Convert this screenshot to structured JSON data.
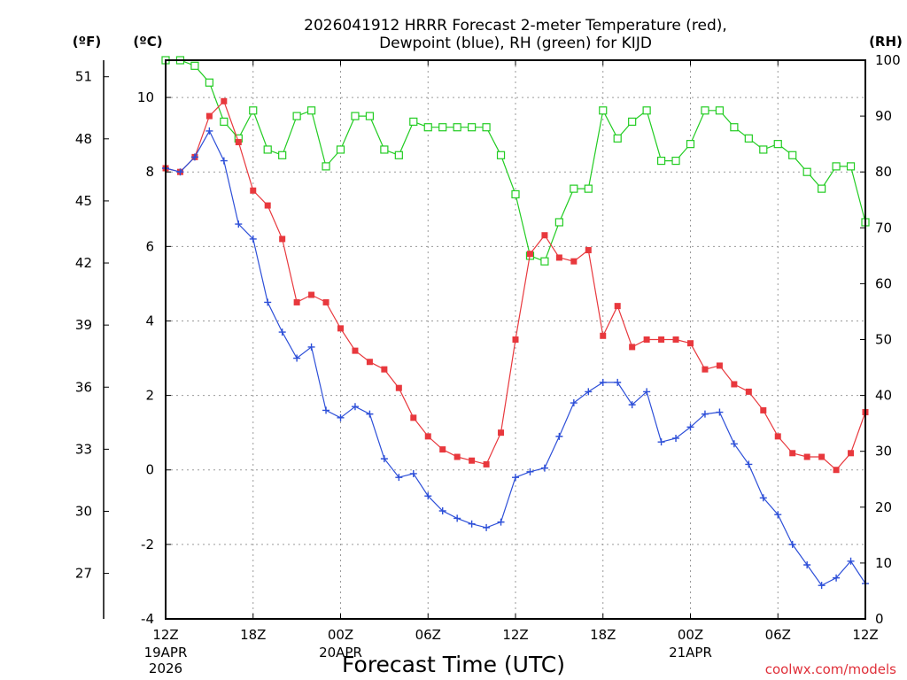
{
  "chart_data": {
    "type": "line",
    "title_line1": "2026041912 HRRR Forecast 2-meter Temperature (red),",
    "title_line2": "Dewpoint (blue), RH (green) for KIJD",
    "xlabel": "Forecast Time (UTC)",
    "credit": "coolwx.com/models",
    "unit_f": "(ºF)",
    "unit_c": "(ºC)",
    "unit_rh": "(RH)",
    "hours": [
      0,
      1,
      2,
      3,
      4,
      5,
      6,
      7,
      8,
      9,
      10,
      11,
      12,
      13,
      14,
      15,
      16,
      17,
      18,
      19,
      20,
      21,
      22,
      23,
      24,
      25,
      26,
      27,
      28,
      29,
      30,
      31,
      32,
      33,
      34,
      35,
      36,
      37,
      38,
      39,
      40,
      41,
      42,
      43,
      44,
      45,
      46,
      47,
      48
    ],
    "xlim": [
      0,
      48
    ],
    "ylim_c": [
      -4,
      11
    ],
    "ylim_rh": [
      0,
      100
    ],
    "x_ticks": [
      {
        "h": 0,
        "label": "12Z"
      },
      {
        "h": 6,
        "label": "18Z"
      },
      {
        "h": 12,
        "label": "00Z"
      },
      {
        "h": 18,
        "label": "06Z"
      },
      {
        "h": 24,
        "label": "12Z"
      },
      {
        "h": 30,
        "label": "18Z"
      },
      {
        "h": 36,
        "label": "00Z"
      },
      {
        "h": 42,
        "label": "06Z"
      },
      {
        "h": 48,
        "label": "12Z"
      }
    ],
    "date_labels": [
      {
        "h": 0,
        "line1": "19APR",
        "line2": "2026"
      },
      {
        "h": 12,
        "line1": "20APR",
        "line2": ""
      },
      {
        "h": 36,
        "line1": "21APR",
        "line2": ""
      }
    ],
    "c_ticks": [
      "-4",
      "-2",
      "0",
      "2",
      "4",
      "6",
      "8",
      "10"
    ],
    "c_tick_values": [
      -4,
      -2,
      0,
      2,
      4,
      6,
      8,
      10
    ],
    "f_ticks": [
      "27",
      "30",
      "33",
      "36",
      "39",
      "42",
      "45",
      "48",
      "51"
    ],
    "f_tick_values": [
      27,
      30,
      33,
      36,
      39,
      42,
      45,
      48,
      51
    ],
    "rh_ticks": [
      "0",
      "10",
      "20",
      "30",
      "40",
      "50",
      "60",
      "70",
      "80",
      "90",
      "100"
    ],
    "rh_tick_values": [
      0,
      10,
      20,
      30,
      40,
      50,
      60,
      70,
      80,
      90,
      100
    ],
    "series": [
      {
        "name": "Temperature",
        "axis": "c",
        "color": "#e8383d",
        "marker": "filled-square",
        "values": [
          8.1,
          8.0,
          8.4,
          9.5,
          9.9,
          8.8,
          7.5,
          7.1,
          6.2,
          4.5,
          4.7,
          4.5,
          3.8,
          3.2,
          2.9,
          2.7,
          2.2,
          1.4,
          0.9,
          0.55,
          0.35,
          0.25,
          0.15,
          1.0,
          3.5,
          5.8,
          6.3,
          5.7,
          5.6,
          5.9,
          3.6,
          4.4,
          3.3,
          3.5,
          3.5,
          3.5,
          3.4,
          2.7,
          2.8,
          2.3,
          2.1,
          1.6,
          0.9,
          0.45,
          0.35,
          0.35,
          0.0,
          0.45,
          1.55
        ]
      },
      {
        "name": "Dewpoint",
        "axis": "c",
        "color": "#2d4fd8",
        "marker": "plus",
        "values": [
          8.1,
          8.0,
          8.4,
          9.1,
          8.3,
          6.6,
          6.2,
          4.5,
          3.7,
          3.0,
          3.3,
          1.6,
          1.4,
          1.7,
          1.5,
          0.3,
          -0.2,
          -0.1,
          -0.7,
          -1.1,
          -1.3,
          -1.45,
          -1.55,
          -1.4,
          -0.2,
          -0.05,
          0.05,
          0.9,
          1.8,
          2.1,
          2.35,
          2.35,
          1.75,
          2.1,
          0.75,
          0.85,
          1.15,
          1.5,
          1.55,
          0.7,
          0.15,
          -0.75,
          -1.2,
          -2.0,
          -2.55,
          -3.1,
          -2.9,
          -2.45,
          -3.05
        ]
      },
      {
        "name": "RH",
        "axis": "rh",
        "color": "#22cc22",
        "marker": "open-square",
        "values": [
          100,
          100,
          99,
          96,
          89,
          86,
          91,
          84,
          83,
          90,
          91,
          81,
          84,
          90,
          90,
          84,
          83,
          89,
          88,
          88,
          88,
          88,
          88,
          83,
          76,
          65,
          64,
          71,
          77,
          77,
          91,
          86,
          89,
          91,
          82,
          82,
          85,
          91,
          91,
          88,
          86,
          84,
          85,
          83,
          80,
          77,
          81,
          81,
          71
        ]
      }
    ]
  }
}
